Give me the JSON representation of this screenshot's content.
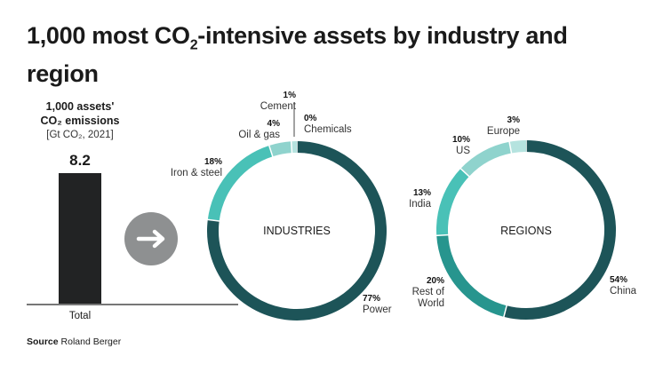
{
  "title": {
    "main": "1,000 most CO",
    "sub": "2",
    "rest": "-intensive assets by industry and region"
  },
  "source": {
    "label": "Source",
    "text": "Roland Berger"
  },
  "chart_data": [
    {
      "type": "bar",
      "title_line1": "1,000 assets'",
      "title_line2": "CO₂ emissions",
      "unit": "[Gt CO₂, 2021]",
      "categories": [
        "Total"
      ],
      "values": [
        8.2
      ],
      "value_label": "8.2"
    },
    {
      "type": "pie",
      "title": "INDUSTRIES",
      "labels": [
        "Power",
        "Iron & steel",
        "Oil & gas",
        "Cement",
        "Chemicals"
      ],
      "values": [
        77,
        18,
        4,
        1,
        0
      ],
      "value_labels": [
        "77%",
        "18%",
        "4%",
        "1%",
        "0%"
      ],
      "colors": [
        "#1d5458",
        "#49c1b7",
        "#8fd3cd",
        "#b5e3df",
        "#cfeeea"
      ]
    },
    {
      "type": "pie",
      "title": "REGIONS",
      "labels": [
        "China",
        "Rest of World",
        "India",
        "US",
        "Europe"
      ],
      "values": [
        54,
        20,
        13,
        10,
        3
      ],
      "value_labels": [
        "54%",
        "20%",
        "13%",
        "10%",
        "3%"
      ],
      "colors": [
        "#1d5458",
        "#27958e",
        "#49c1b7",
        "#8fd3cd",
        "#b5e3df"
      ]
    }
  ]
}
